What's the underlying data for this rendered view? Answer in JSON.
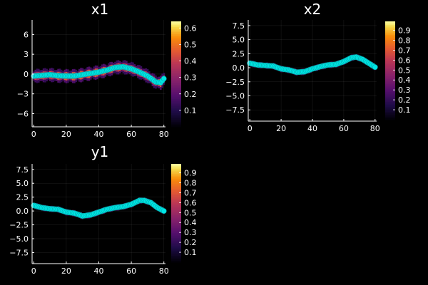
{
  "colors": {
    "background": "#000000",
    "foreground": "#ffffff",
    "marker": "#00e5e5",
    "marker_stroke": "#00a8a8"
  },
  "colormap": "inferno",
  "chart_data": [
    {
      "type": "heatmap",
      "overlay": "scatter",
      "title": "x1",
      "xlim": [
        -1,
        81
      ],
      "ylim": [
        -8,
        8.2
      ],
      "xticks": [
        0,
        20,
        40,
        60,
        80
      ],
      "yticks": [
        -6,
        -3,
        0,
        3,
        6
      ],
      "ytick_labels": [
        "−6",
        "−3",
        "0",
        "3",
        "6"
      ],
      "colorbar": {
        "lim": [
          0,
          0.64
        ],
        "ticks": [
          0.1,
          0.2,
          0.3,
          0.4,
          0.5,
          0.6
        ]
      },
      "band_spread": 0.6,
      "x": [
        0,
        5,
        10,
        15,
        20,
        25,
        30,
        35,
        40,
        45,
        50,
        55,
        60,
        65,
        70,
        75,
        78,
        80
      ],
      "y": [
        -0.3,
        -0.2,
        -0.1,
        -0.25,
        -0.3,
        -0.3,
        -0.1,
        0.1,
        0.3,
        0.6,
        1.0,
        1.1,
        0.8,
        0.3,
        -0.3,
        -1.2,
        -1.3,
        -0.7
      ]
    },
    {
      "type": "heatmap",
      "overlay": "scatter",
      "title": "x2",
      "xlim": [
        -1,
        81
      ],
      "ylim": [
        -9.5,
        8.5
      ],
      "xticks": [
        0,
        20,
        40,
        60,
        80
      ],
      "yticks": [
        -7.5,
        -5,
        -2.5,
        0,
        2.5,
        5,
        7.5
      ],
      "ytick_labels": [
        "−7.5",
        "−5.0",
        "−2.5",
        "0.0",
        "2.5",
        "5.0",
        "7.5"
      ],
      "colorbar": {
        "lim": [
          0,
          0.99
        ],
        "ticks": [
          0.1,
          0.2,
          0.3,
          0.4,
          0.5,
          0.6,
          0.7,
          0.8,
          0.9
        ]
      },
      "band_spread": 0.3,
      "x": [
        0,
        5,
        10,
        15,
        20,
        25,
        30,
        35,
        40,
        45,
        50,
        55,
        60,
        65,
        68,
        72,
        76,
        80
      ],
      "y": [
        0.8,
        0.5,
        0.4,
        0.3,
        -0.2,
        -0.4,
        -0.8,
        -0.7,
        -0.2,
        0.2,
        0.5,
        0.6,
        1.1,
        1.8,
        1.9,
        1.5,
        0.8,
        0.1
      ]
    },
    {
      "type": "heatmap",
      "overlay": "scatter",
      "title": "y1",
      "xlim": [
        -1,
        81
      ],
      "ylim": [
        -9.5,
        8.5
      ],
      "xticks": [
        0,
        20,
        40,
        60,
        80
      ],
      "yticks": [
        -7.5,
        -5,
        -2.5,
        0,
        2.5,
        5,
        7.5
      ],
      "ytick_labels": [
        "−7.5",
        "−5.0",
        "−2.5",
        "0.0",
        "2.5",
        "5.0",
        "7.5"
      ],
      "colorbar": {
        "lim": [
          0,
          0.99
        ],
        "ticks": [
          0.1,
          0.2,
          0.3,
          0.4,
          0.5,
          0.6,
          0.7,
          0.8,
          0.9
        ]
      },
      "band_spread": 0.3,
      "x": [
        0,
        5,
        10,
        15,
        20,
        25,
        30,
        35,
        40,
        45,
        50,
        55,
        60,
        65,
        68,
        72,
        76,
        80
      ],
      "y": [
        1.0,
        0.6,
        0.4,
        0.3,
        -0.2,
        -0.4,
        -0.9,
        -0.7,
        -0.2,
        0.3,
        0.6,
        0.8,
        1.2,
        1.9,
        1.9,
        1.5,
        0.6,
        0.0
      ]
    }
  ]
}
